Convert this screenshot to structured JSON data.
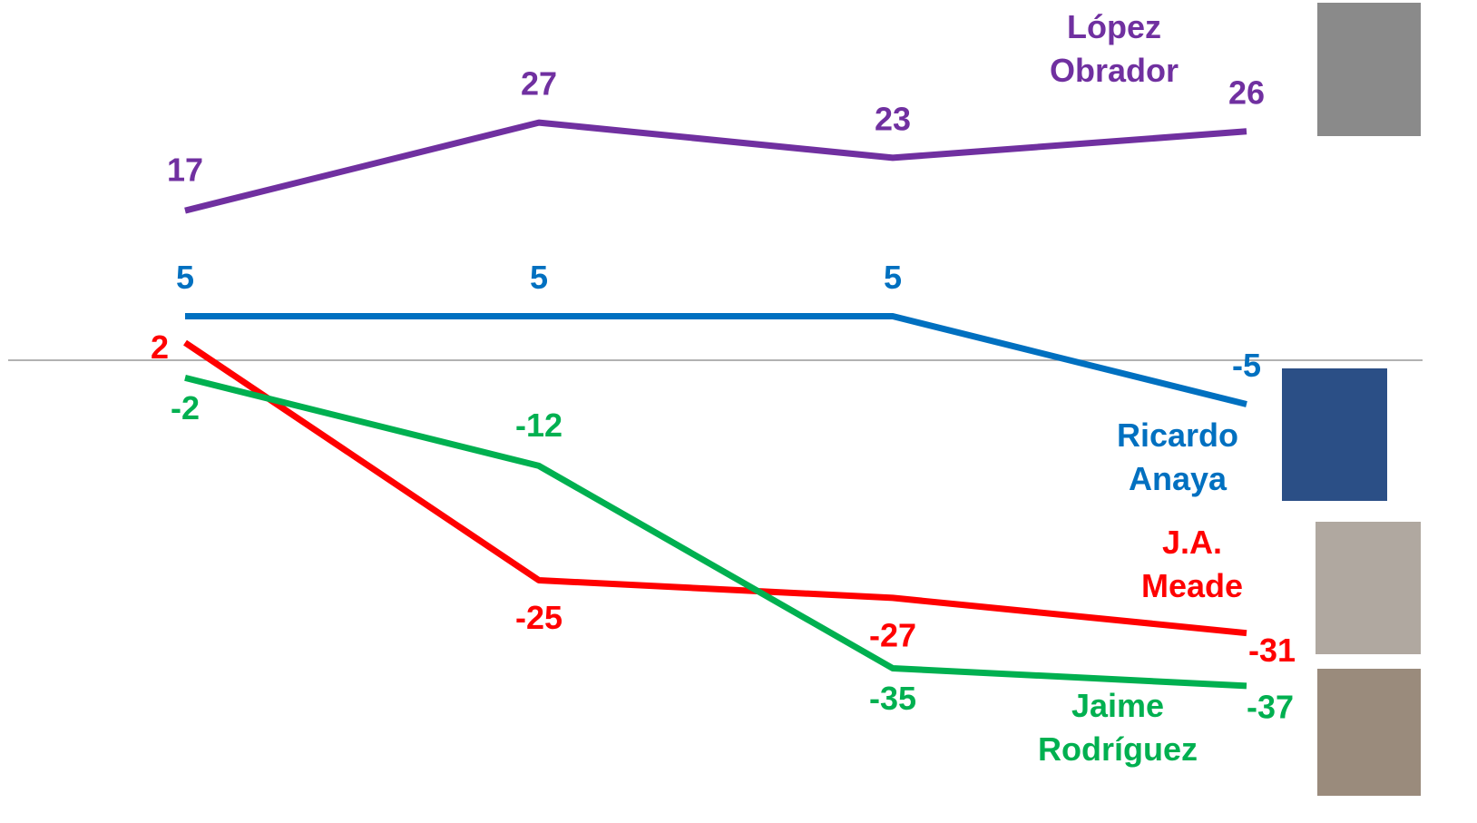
{
  "chart_data": {
    "type": "line",
    "categories": [
      null,
      null,
      null,
      null
    ],
    "ylim": [
      -40,
      40
    ],
    "series": [
      {
        "name": "López Obrador",
        "color": "#7030a0",
        "values": [
          17,
          27,
          23,
          26
        ]
      },
      {
        "name": "Ricardo Anaya",
        "color": "#0070c0",
        "values": [
          5,
          5,
          5,
          -5
        ]
      },
      {
        "name": "J.A. Meade",
        "color": "#ff0000",
        "values": [
          2,
          -25,
          -27,
          -31
        ]
      },
      {
        "name": "Jaime Rodríguez",
        "color": "#00b050",
        "values": [
          -2,
          -12,
          -35,
          -37
        ]
      }
    ]
  }
}
